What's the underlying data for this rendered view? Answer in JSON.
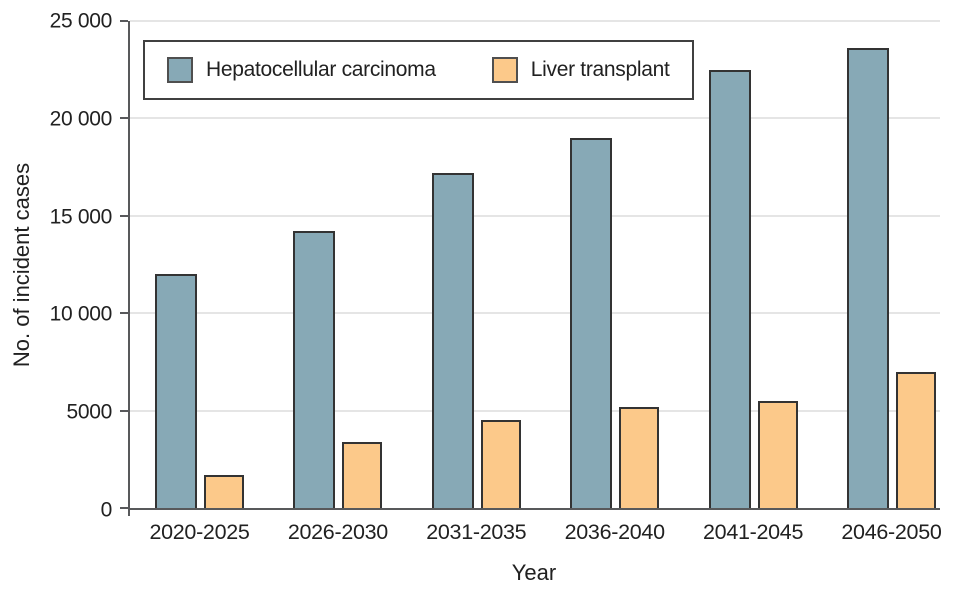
{
  "appearance": {
    "axis_color": "#58595b",
    "grid_color": "#e5e5e5",
    "bar_border_color": "#333333",
    "text_color": "#212121",
    "background": "#ffffff"
  },
  "chart_data": {
    "type": "bar",
    "title": "",
    "xlabel": "Year",
    "ylabel": "No. of incident cases",
    "categories": [
      "2020-2025",
      "2026-2030",
      "2031-2035",
      "2036-2040",
      "2041-2045",
      "2046-2050"
    ],
    "series": [
      {
        "name": "Hepatocellular carcinoma",
        "color": "#87a9b6",
        "values": [
          12000,
          14200,
          17200,
          19000,
          22500,
          23600
        ]
      },
      {
        "name": "Liver transplant",
        "color": "#fcc98a",
        "values": [
          1700,
          3400,
          4500,
          5200,
          5500,
          7000
        ]
      }
    ],
    "ylim": [
      0,
      25000
    ],
    "yticks": [
      0,
      5000,
      10000,
      15000,
      20000,
      25000
    ],
    "ytick_labels": [
      "0",
      "5000",
      "10 000",
      "15 000",
      "20 000",
      "25 000"
    ],
    "grid": true,
    "legend_position": "top-left-inside"
  }
}
